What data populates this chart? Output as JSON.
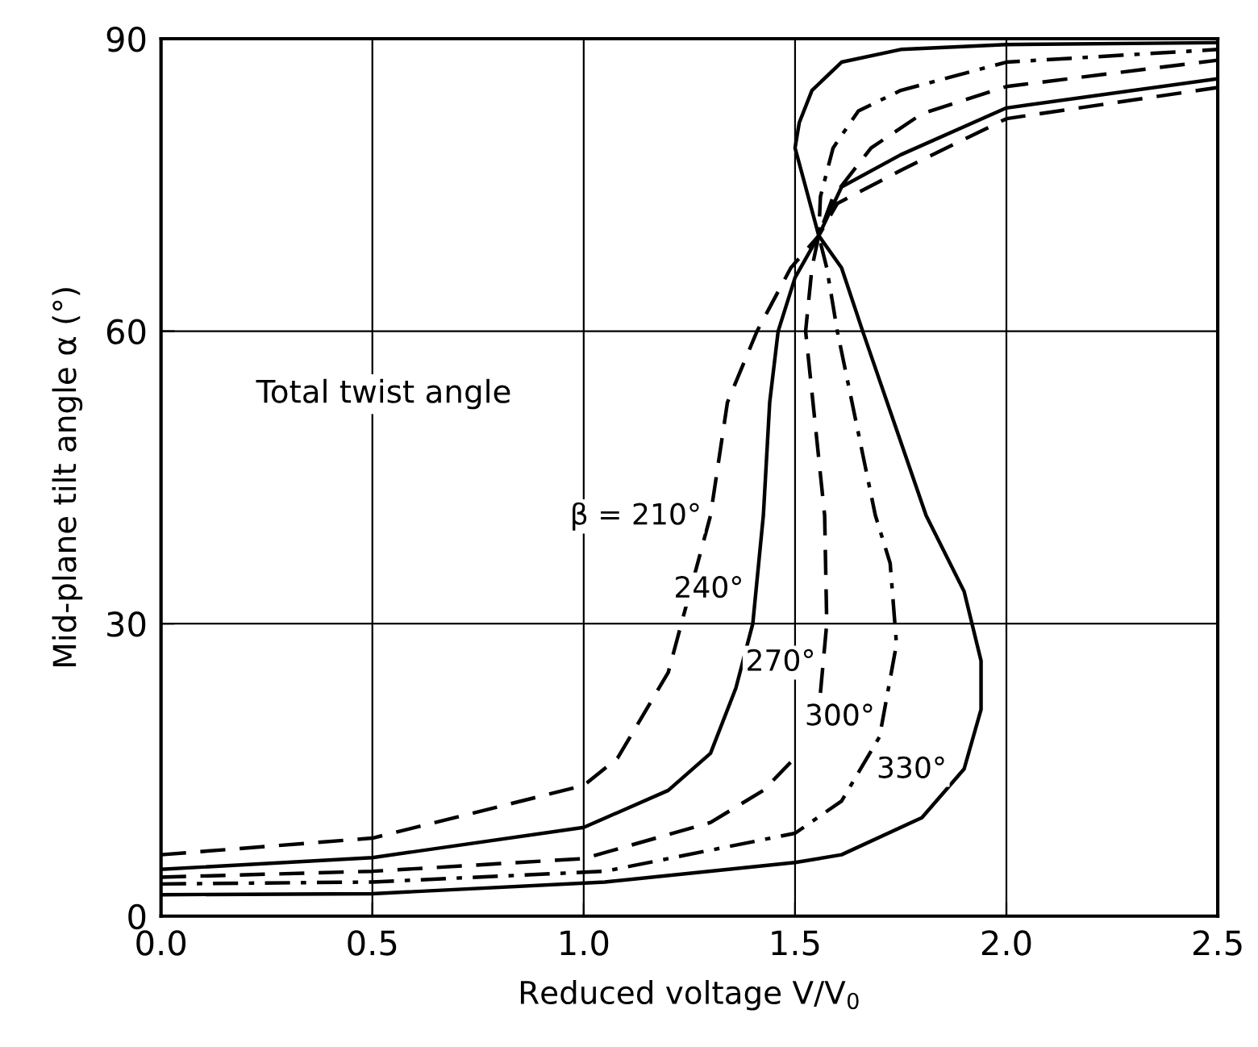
{
  "chart_data": {
    "type": "line",
    "xlabel": "Reduced voltage V/V$_{0}$",
    "ylabel": "Mid-plane tilt angle α (°)",
    "xlim": [
      0,
      2.5
    ],
    "ylim": [
      0,
      90
    ],
    "xticks": [
      {
        "value": 0,
        "label": "0.0"
      },
      0.5,
      {
        "value": 1,
        "label": "1.0"
      },
      1.5,
      {
        "value": 2,
        "label": "2.0"
      },
      2.5
    ],
    "yticks": [
      0,
      30,
      60,
      90
    ],
    "grid": true,
    "series": [
      {
        "color": "#000000",
        "line_style": "dashed",
        "x": [
          0,
          0.5,
          1.0,
          1.08,
          1.2,
          1.3,
          1.34,
          1.41,
          1.49,
          1.556,
          1.6,
          1.75,
          2.0,
          2.5
        ],
        "values": [
          6.3,
          8.0,
          13.4,
          16.2,
          25,
          41.1,
          52.7,
          60,
          66.5,
          69.8,
          73.1,
          76.5,
          81.8,
          85.0
        ]
      },
      {
        "color": "#000000",
        "line_style": "solid",
        "x": [
          0,
          0.5,
          1.0,
          1.2,
          1.3,
          1.36,
          1.4,
          1.425,
          1.44,
          1.46,
          1.5,
          1.556,
          1.61,
          1.75,
          2.0,
          2.5
        ],
        "values": [
          4.8,
          6.0,
          9.1,
          12.9,
          16.7,
          23.4,
          30,
          41.1,
          52.7,
          60,
          65.5,
          69.8,
          74.8,
          78.1,
          82.9,
          85.9
        ]
      },
      {
        "color": "#000000",
        "line_style": "dashed",
        "x": [
          0,
          0.5,
          1.0,
          1.3,
          1.425,
          1.49,
          1.53,
          1.56,
          1.575,
          1.57,
          1.525,
          1.54,
          1.556,
          1.59,
          1.68,
          1.8,
          2.0,
          2.5
        ],
        "values": [
          4.0,
          4.6,
          5.9,
          9.6,
          12.9,
          15.8,
          null,
          22.9,
          30,
          41.1,
          60,
          66.5,
          69.8,
          73.8,
          78.8,
          82.3,
          85.1,
          87.8
        ]
      },
      {
        "color": "#000000",
        "line_style": "dashdot",
        "x": [
          0,
          0.5,
          1.05,
          1.5,
          1.61,
          1.7,
          1.74,
          1.725,
          1.69,
          1.6,
          1.575,
          1.556,
          1.56,
          1.59,
          1.65,
          1.75,
          2.0,
          2.5
        ],
        "values": [
          3.3,
          3.5,
          4.6,
          8.5,
          11.8,
          18.4,
          27.9,
          36.2,
          41.1,
          60,
          66.5,
          69.8,
          73.8,
          78.8,
          82.6,
          84.7,
          87.6,
          88.9
        ]
      },
      {
        "color": "#000000",
        "line_style": "solid",
        "x": [
          0,
          0.5,
          1.05,
          1.5,
          1.61,
          1.8,
          1.9,
          1.94,
          1.94,
          1.9,
          1.81,
          1.66,
          1.61,
          1.556,
          1.525,
          1.5,
          1.51,
          1.54,
          1.61,
          1.75,
          2.0,
          2.5
        ],
        "values": [
          2.2,
          2.3,
          3.5,
          5.5,
          6.3,
          10.1,
          15.1,
          21.2,
          26.2,
          33.3,
          41.1,
          60,
          66.5,
          69.8,
          74.8,
          78.8,
          81.4,
          84.7,
          87.6,
          88.9,
          89.4,
          89.6
        ]
      }
    ],
    "annotations": [
      "Total twist angle",
      {
        "text": "β = 210°",
        "x": 1.3,
        "y": 41
      },
      {
        "text": "240°",
        "x": 1.4,
        "y": 33.5
      },
      {
        "text": "270°",
        "x": 1.57,
        "y": 26
      },
      {
        "text": "300°",
        "x": 1.71,
        "y": 20.4
      },
      {
        "text": "330°",
        "x": 1.88,
        "y": 15
      }
    ]
  }
}
